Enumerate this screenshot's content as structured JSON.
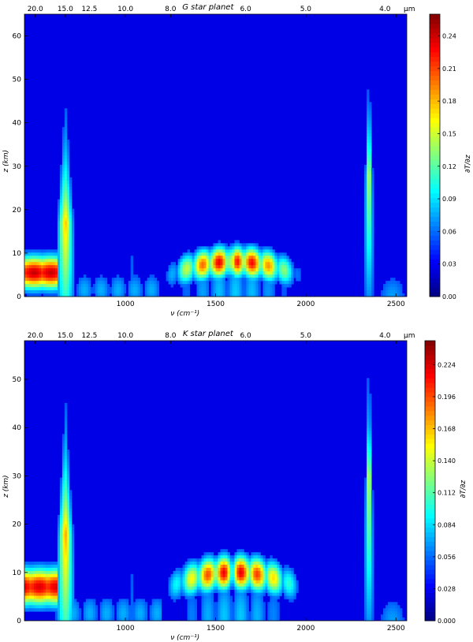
{
  "chart_data": [
    {
      "type": "heatmap",
      "title": "G star planet",
      "xlabel": "ν (cm⁻¹)",
      "ylabel": "z (km)",
      "xlim": [
        440,
        2560
      ],
      "ylim": [
        0,
        65
      ],
      "x_ticks": [
        "1000",
        "1500",
        "2000",
        "2500"
      ],
      "x_tick_values": [
        1000,
        1500,
        2000,
        2500
      ],
      "y_ticks": [
        "0",
        "10",
        "20",
        "30",
        "40",
        "50",
        "60"
      ],
      "y_tick_values": [
        0,
        10,
        20,
        30,
        40,
        50,
        60
      ],
      "top_axis_unit": "μm",
      "top_ticks": [
        "20.0",
        "15.0",
        "12.5",
        "10.0",
        "8.0",
        "6.0",
        "5.0",
        "4.0"
      ],
      "top_tick_wavelengths": [
        20.0,
        15.0,
        12.5,
        10.0,
        8.0,
        6.0,
        5.0,
        4.0
      ],
      "colorbar_label": "∂T/∂z",
      "colorbar_range": [
        0,
        0.26
      ],
      "colorbar_ticks": [
        "0.00",
        "0.03",
        "0.06",
        "0.09",
        "0.12",
        "0.15",
        "0.18",
        "0.21",
        "0.24"
      ],
      "colorbar_tick_values": [
        0.0,
        0.03,
        0.06,
        0.09,
        0.12,
        0.15,
        0.18,
        0.21,
        0.24
      ],
      "colormap": "jet",
      "features": [
        {
          "wavenumber_range": [
            440,
            600
          ],
          "z_range": [
            2,
            9
          ],
          "peak": 0.24
        },
        {
          "wavenumber": 667,
          "z_peak": 17,
          "z_extent": 65,
          "peak": 0.15
        },
        {
          "wavenumber_range": [
            1250,
            1970
          ],
          "z_center": 8,
          "peak": 0.24
        },
        {
          "wavenumber": 2350,
          "z_peak": 28,
          "z_extent": 65,
          "peak": 0.12
        }
      ]
    },
    {
      "type": "heatmap",
      "title": "K star planet",
      "xlabel": "ν (cm⁻¹)",
      "ylabel": "z (km)",
      "xlim": [
        440,
        2560
      ],
      "ylim": [
        0,
        58
      ],
      "x_ticks": [
        "1000",
        "1500",
        "2000",
        "2500"
      ],
      "x_tick_values": [
        1000,
        1500,
        2000,
        2500
      ],
      "y_ticks": [
        "0",
        "10",
        "20",
        "30",
        "40",
        "50"
      ],
      "y_tick_values": [
        0,
        10,
        20,
        30,
        40,
        50
      ],
      "top_axis_unit": "μm",
      "top_ticks": [
        "20.0",
        "15.0",
        "12.5",
        "10.0",
        "8.0",
        "6.0",
        "5.0",
        "4.0"
      ],
      "top_tick_wavelengths": [
        20.0,
        15.0,
        12.5,
        10.0,
        8.0,
        6.0,
        5.0,
        4.0
      ],
      "colorbar_label": "∂T/∂z",
      "colorbar_range": [
        0,
        0.245
      ],
      "colorbar_ticks": [
        "0.000",
        "0.028",
        "0.056",
        "0.084",
        "0.112",
        "0.140",
        "0.168",
        "0.196",
        "0.224"
      ],
      "colorbar_tick_values": [
        0.0,
        0.028,
        0.056,
        0.084,
        0.112,
        0.14,
        0.168,
        0.196,
        0.224
      ],
      "colormap": "jet",
      "features": [
        {
          "wavenumber_range": [
            440,
            600
          ],
          "z_range": [
            3,
            11
          ],
          "peak": 0.22
        },
        {
          "wavenumber": 667,
          "z_peak": 18,
          "z_extent": 58,
          "peak": 0.15
        },
        {
          "wavenumber_range": [
            1250,
            1970
          ],
          "z_center": 10,
          "peak": 0.22
        },
        {
          "wavenumber": 2350,
          "z_peak": 30,
          "z_extent": 58,
          "peak": 0.12
        }
      ]
    }
  ]
}
